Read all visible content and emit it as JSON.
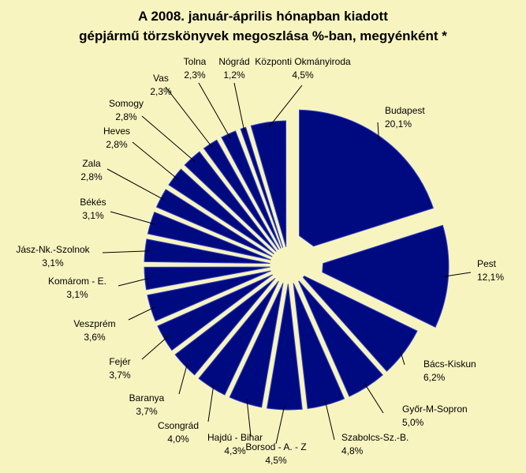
{
  "chart_data": {
    "type": "pie",
    "title": "A  2008. január-április hónapban kiadott",
    "subtitle": "gépjármű törzskönyvek megoszlása %-ban, megyénként *",
    "colors": {
      "slice_fill": "#000a80",
      "slice_stroke": "#3040c0",
      "background": "#f8f4c0",
      "leader": "#000000"
    },
    "slices": [
      {
        "label": "Budapest",
        "value_label": "20,1%",
        "value": 20.1
      },
      {
        "label": "Pest",
        "value_label": "12,1%",
        "value": 12.1
      },
      {
        "label": "Bács-Kiskun",
        "value_label": "6,2%",
        "value": 6.2
      },
      {
        "label": "Győr-M-Sopron",
        "value_label": "5,0%",
        "value": 5.0
      },
      {
        "label": "Szabolcs-Sz.-B.",
        "value_label": "4,8%",
        "value": 4.8
      },
      {
        "label": "Borsod - A. - Z",
        "value_label": "4,5%",
        "value": 4.5
      },
      {
        "label": "Hajdú - Bihar",
        "value_label": "4,3%",
        "value": 4.3
      },
      {
        "label": "Csongrád",
        "value_label": "4,0%",
        "value": 4.0
      },
      {
        "label": "Baranya",
        "value_label": "3,7%",
        "value": 3.7
      },
      {
        "label": "Fejér",
        "value_label": "3,7%",
        "value": 3.7
      },
      {
        "label": "Veszprém",
        "value_label": "3,6%",
        "value": 3.6
      },
      {
        "label": "Komárom - E.",
        "value_label": "3,1%",
        "value": 3.1
      },
      {
        "label": "Jász-Nk.-Szolnok",
        "value_label": "3,1%",
        "value": 3.1
      },
      {
        "label": "Békés",
        "value_label": "3,1%",
        "value": 3.1
      },
      {
        "label": "Zala",
        "value_label": "2,8%",
        "value": 2.8
      },
      {
        "label": "Heves",
        "value_label": "2,8%",
        "value": 2.8
      },
      {
        "label": "Somogy",
        "value_label": "2,8%",
        "value": 2.8
      },
      {
        "label": "Vas",
        "value_label": "2,3%",
        "value": 2.3
      },
      {
        "label": "Tolna",
        "value_label": "2,3%",
        "value": 2.3
      },
      {
        "label": "Nógrád",
        "value_label": "1,2%",
        "value": 1.2
      },
      {
        "label": "Központi Okmányiroda",
        "value_label": "4,5%",
        "value": 4.5
      }
    ]
  }
}
